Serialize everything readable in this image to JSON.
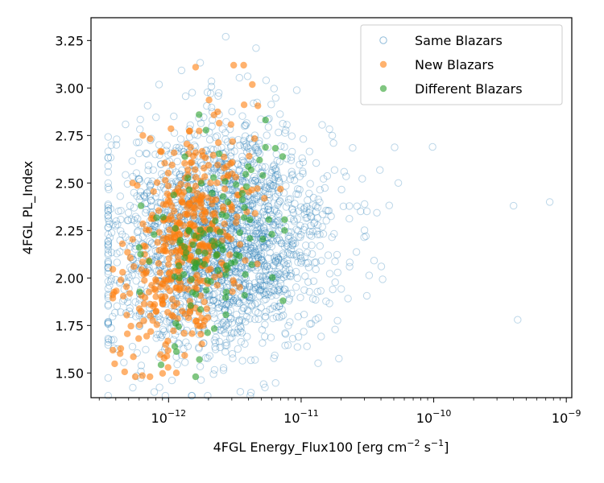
{
  "chart_data": {
    "type": "scatter",
    "title": "",
    "xlabel_main": "4FGL Energy_Flux100 [erg cm",
    "xlabel_exp1": "−2",
    "xlabel_mid": " s",
    "xlabel_exp2": "−1",
    "xlabel_end": "]",
    "ylabel": "4FGL PL_Index",
    "xscale": "log",
    "xlim": [
      2.6e-13,
      1.1e-09
    ],
    "ylim": [
      1.37,
      3.37
    ],
    "yticks": [
      "1.50",
      "1.75",
      "2.00",
      "2.25",
      "2.50",
      "2.75",
      "3.00",
      "3.25"
    ],
    "xticks_major": [
      {
        "base": "10",
        "exp": "−12"
      },
      {
        "base": "10",
        "exp": "−11"
      },
      {
        "base": "10",
        "exp": "−10"
      },
      {
        "base": "10",
        "exp": "−9"
      }
    ],
    "legend": {
      "position": "upper right",
      "entries": [
        {
          "label": "Same Blazars",
          "style": "hollow-circle",
          "color": "#1f77b4"
        },
        {
          "label": "New Blazars",
          "style": "filled-circle",
          "color": "#ff7f0e"
        },
        {
          "label": "Different Blazars",
          "style": "filled-circle",
          "color": "#2ca02c"
        }
      ]
    },
    "series": [
      {
        "name": "Same Blazars",
        "color": "#1f77b4",
        "marker": "hollow",
        "n_points": 2200,
        "log10_x_center": -11.62,
        "log10_x_spread": 0.42,
        "y_center": 2.2,
        "y_spread": 0.3,
        "y_slope_per_decade": 0.05,
        "y_range": [
          1.38,
          3.28
        ],
        "x_range": [
          3.5e-13,
          8e-10
        ],
        "outliers": [
          {
            "x": 7.5e-10,
            "y": 2.4
          },
          {
            "x": 4e-10,
            "y": 2.38
          },
          {
            "x": 4.3e-10,
            "y": 1.78
          },
          {
            "x": 2.7e-12,
            "y": 3.27
          },
          {
            "x": 3.5e-13,
            "y": 1.76
          },
          {
            "x": 9.8e-11,
            "y": 2.69
          }
        ]
      },
      {
        "name": "New Blazars",
        "color": "#ff7f0e",
        "marker": "filled",
        "n_points": 420,
        "log10_x_center": -11.85,
        "log10_x_spread": 0.22,
        "y_center": 2.2,
        "y_spread": 0.27,
        "y_slope_per_decade": 0.55,
        "y_range": [
          1.48,
          3.12
        ],
        "x_range": [
          3.8e-13,
          1e-11
        ],
        "outliers": [
          {
            "x": 1.6e-12,
            "y": 3.11
          },
          {
            "x": 3.1e-12,
            "y": 3.12
          },
          {
            "x": 6.4e-13,
            "y": 2.75
          },
          {
            "x": 3.8e-13,
            "y": 1.62
          },
          {
            "x": 4.5e-13,
            "y": 2.03
          }
        ]
      },
      {
        "name": "Different Blazars",
        "color": "#2ca02c",
        "marker": "filled",
        "n_points": 110,
        "log10_x_center": -11.72,
        "log10_x_spread": 0.24,
        "y_center": 2.2,
        "y_spread": 0.27,
        "y_slope_per_decade": 0.4,
        "y_range": [
          1.47,
          2.96
        ],
        "x_range": [
          6e-13,
          7.5e-12
        ],
        "outliers": [
          {
            "x": 1.7e-12,
            "y": 2.86
          },
          {
            "x": 6.2e-13,
            "y": 2.38
          },
          {
            "x": 1.6e-12,
            "y": 1.48
          },
          {
            "x": 7.3e-12,
            "y": 1.88
          }
        ]
      }
    ]
  }
}
